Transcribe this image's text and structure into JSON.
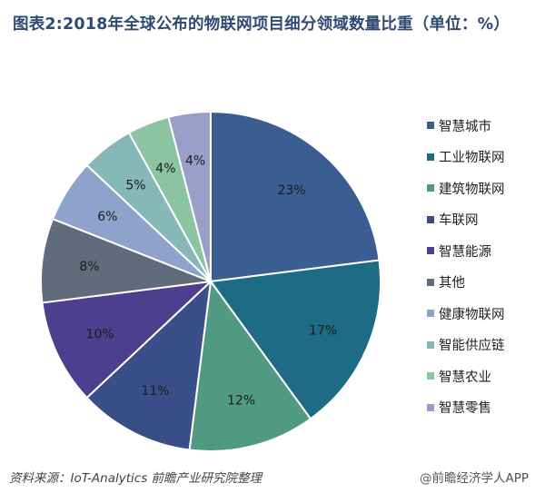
{
  "title": "图表2:2018年全球公布的物联网项目细分领域数量比重（单位：%）",
  "chart_data": {
    "type": "pie",
    "categories": [
      "智慧城市",
      "工业物联网",
      "建筑物联网",
      "车联网",
      "智慧能源",
      "其他",
      "健康物联网",
      "智能供应链",
      "智慧农业",
      "智慧零售"
    ],
    "values": [
      23,
      17,
      12,
      11,
      10,
      8,
      6,
      5,
      4,
      4
    ],
    "value_labels": [
      "23%",
      "17%",
      "12%",
      "11%",
      "10%",
      "8%",
      "6%",
      "5%",
      "4%",
      "4%"
    ],
    "colors": [
      "#3b5e92",
      "#1e6b86",
      "#4f9a80",
      "#3a4f87",
      "#4b3f8e",
      "#616b7b",
      "#8ea3cb",
      "#86b8b8",
      "#8cc4a1",
      "#9a9fc9"
    ],
    "start_angle_deg": 0,
    "direction": "clockwise",
    "legend_position": "right"
  },
  "footer": {
    "source": "资料来源：IoT-Analytics  前瞻产业研究院整理",
    "watermark": "@前瞻经济学人APP"
  }
}
